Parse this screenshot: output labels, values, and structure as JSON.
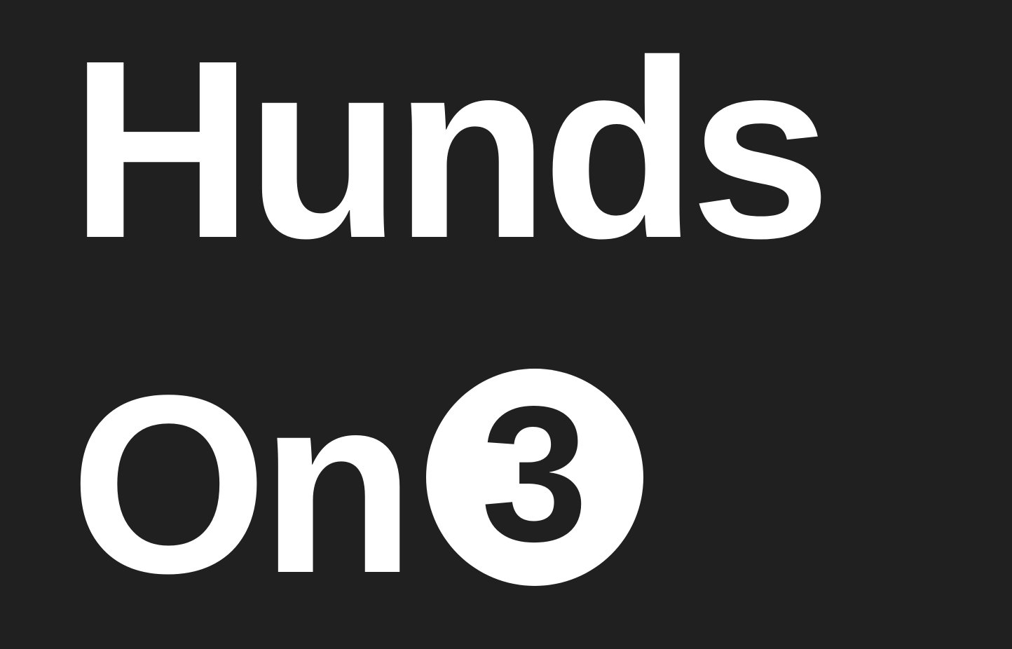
{
  "logo": {
    "line1": "Hunds",
    "line2": "On",
    "badge_number": "3",
    "colors": {
      "background": "#202020",
      "foreground": "#ffffff"
    }
  }
}
